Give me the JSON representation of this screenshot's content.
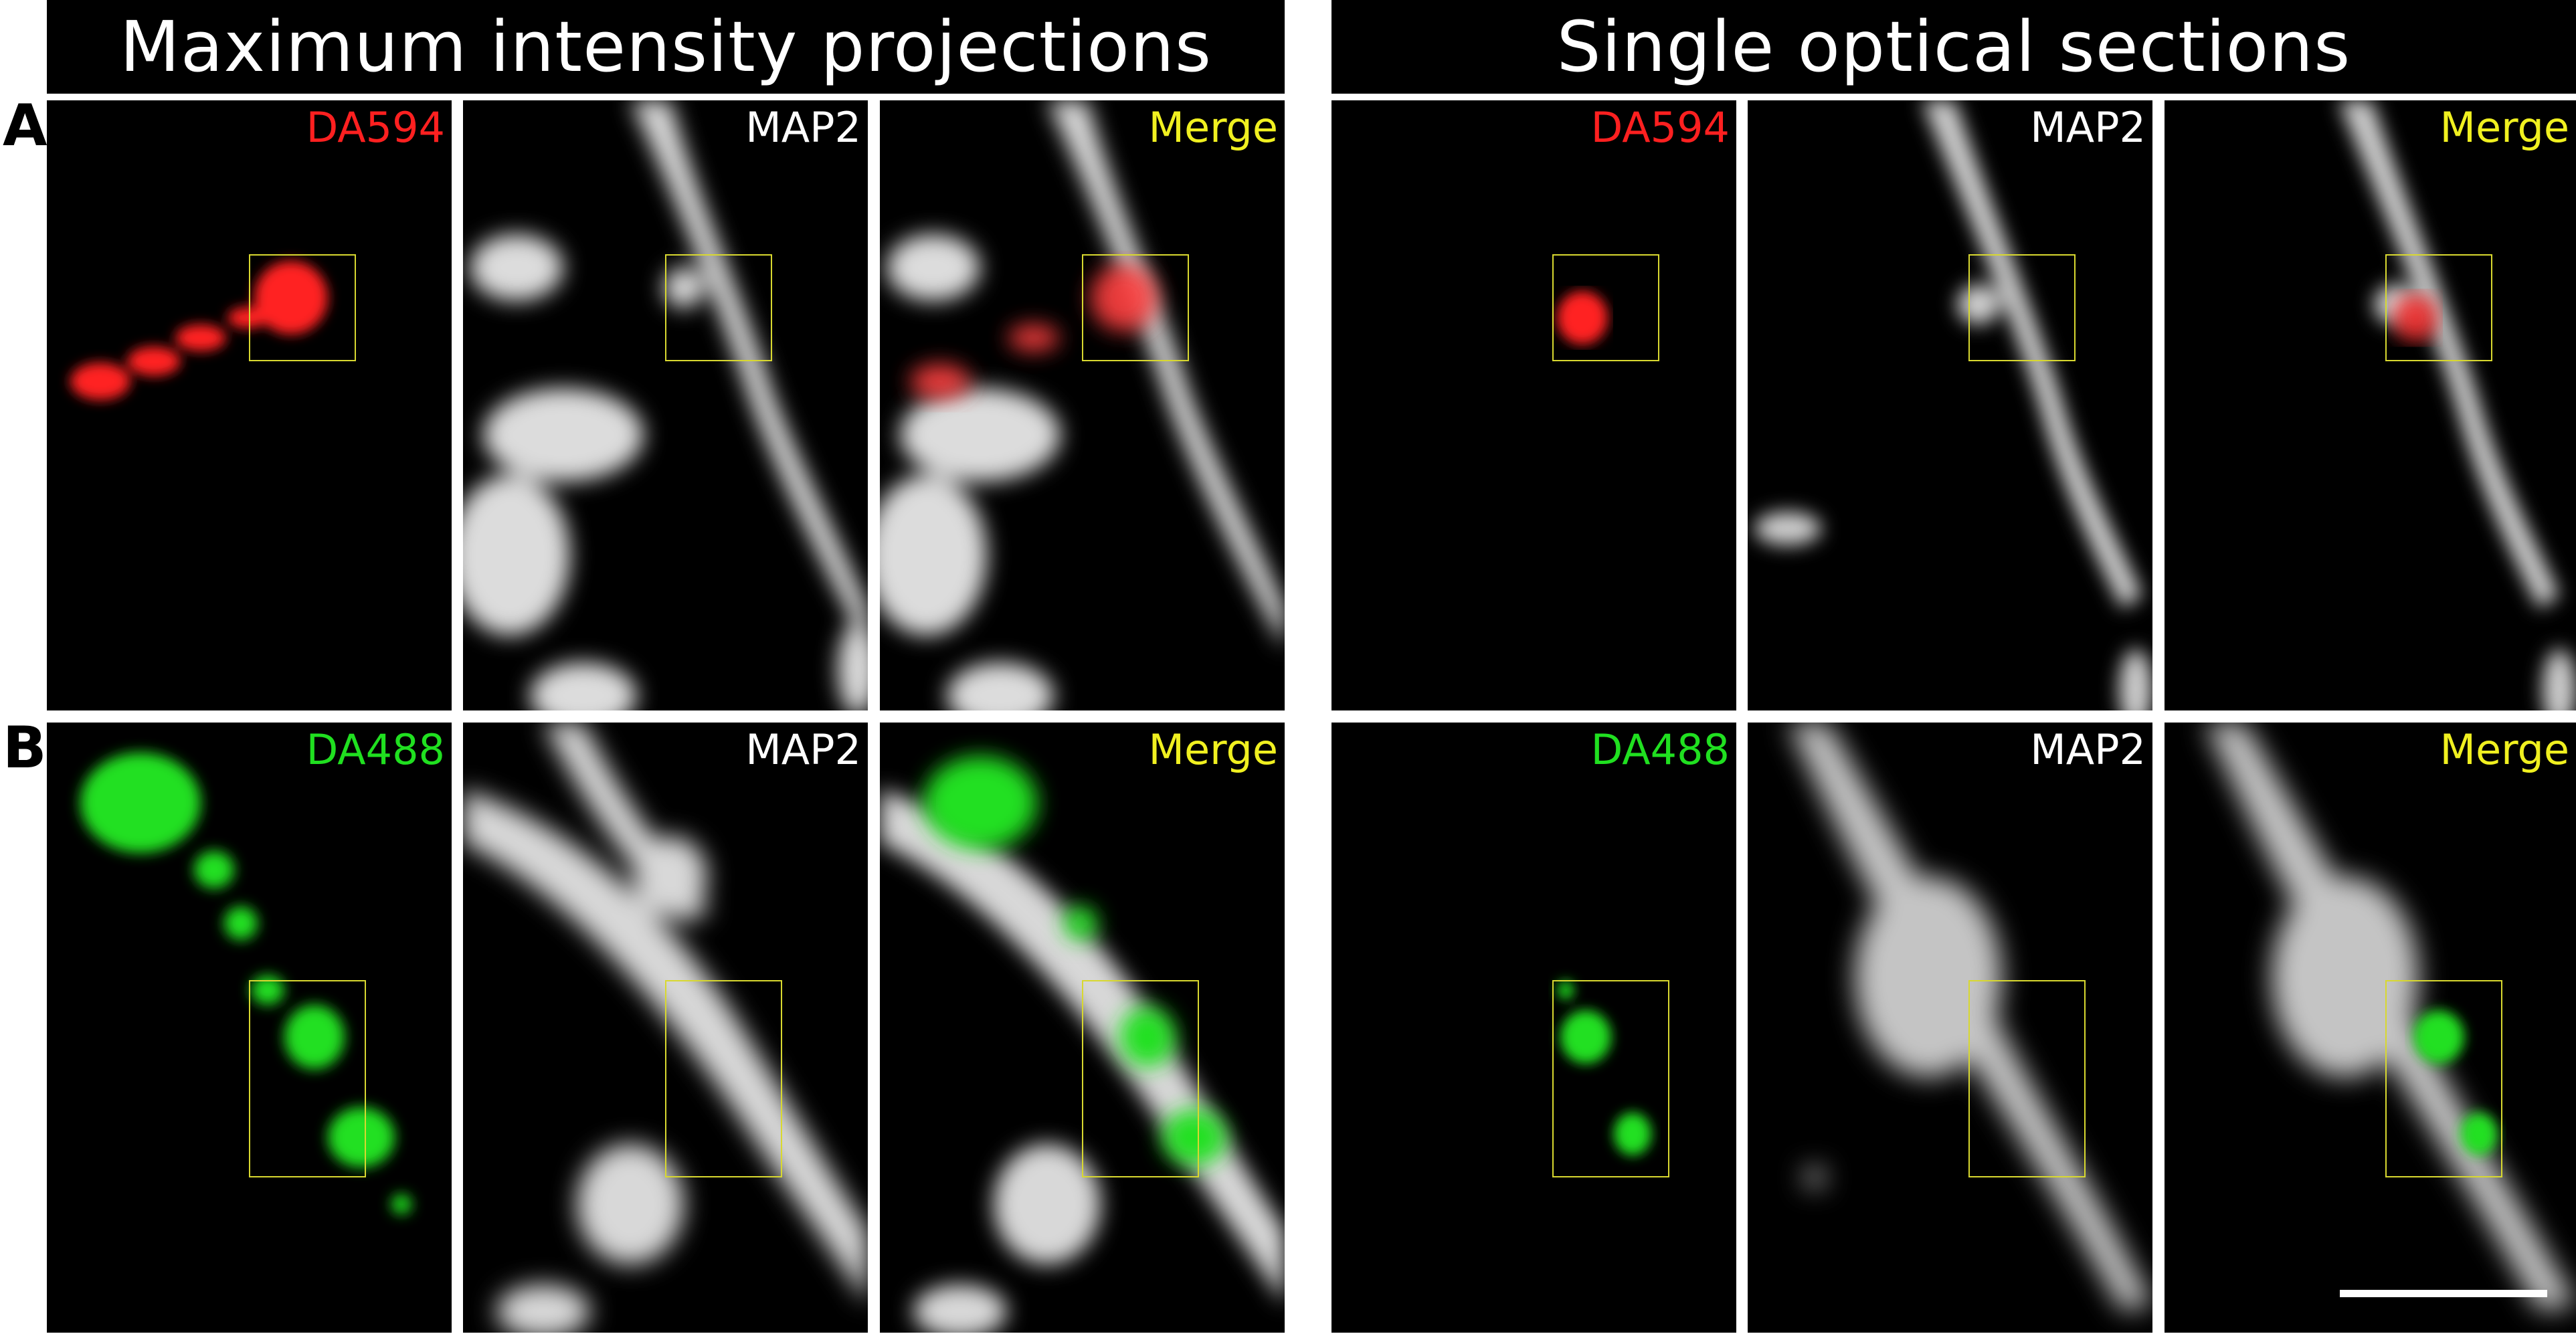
{
  "headers": {
    "left": "Maximum intensity projections",
    "right": "Single optical sections"
  },
  "rows": [
    {
      "letter": "A",
      "labels": [
        "DA594",
        "MAP2",
        "Merge",
        "DA594",
        "MAP2",
        "Merge"
      ]
    },
    {
      "letter": "B",
      "labels": [
        "DA488",
        "MAP2",
        "Merge",
        "DA488",
        "MAP2",
        "Merge"
      ]
    }
  ],
  "colors": {
    "red_channel": "#ff2020",
    "green_channel": "#20e020",
    "map2_label": "#ffffff",
    "merge_label": "#f0f020",
    "roi_box": "#d8d830",
    "background": "#000000"
  }
}
